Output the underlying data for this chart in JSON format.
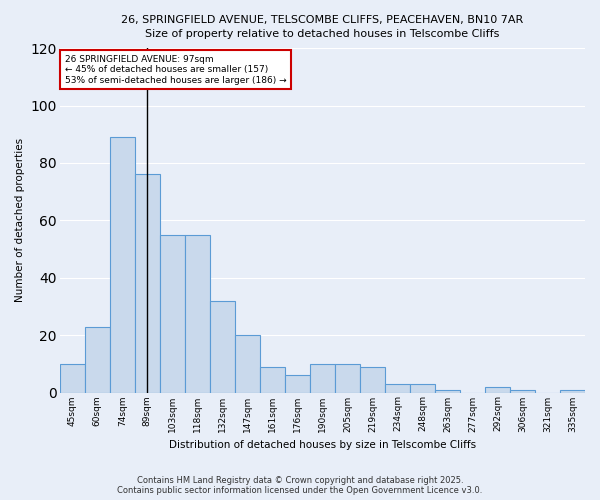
{
  "title_line1": "26, SPRINGFIELD AVENUE, TELSCOMBE CLIFFS, PEACEHAVEN, BN10 7AR",
  "title_line2": "Size of property relative to detached houses in Telscombe Cliffs",
  "categories": [
    "45sqm",
    "60sqm",
    "74sqm",
    "89sqm",
    "103sqm",
    "118sqm",
    "132sqm",
    "147sqm",
    "161sqm",
    "176sqm",
    "190sqm",
    "205sqm",
    "219sqm",
    "234sqm",
    "248sqm",
    "263sqm",
    "277sqm",
    "292sqm",
    "306sqm",
    "321sqm",
    "335sqm"
  ],
  "values": [
    10,
    23,
    89,
    76,
    55,
    55,
    32,
    20,
    9,
    6,
    10,
    10,
    9,
    3,
    3,
    1,
    0,
    2,
    1,
    0,
    1
  ],
  "bar_color": "#c9d9ec",
  "bar_edge_color": "#5b9bd5",
  "ylabel": "Number of detached properties",
  "xlabel": "Distribution of detached houses by size in Telscombe Cliffs",
  "ylim": [
    0,
    120
  ],
  "yticks": [
    0,
    20,
    40,
    60,
    80,
    100,
    120
  ],
  "property_line_x": 3,
  "annotation_line1": "26 SPRINGFIELD AVENUE: 97sqm",
  "annotation_line2": "← 45% of detached houses are smaller (157)",
  "annotation_line3": "53% of semi-detached houses are larger (186) →",
  "annotation_box_color": "#ffffff",
  "annotation_box_edge": "#cc0000",
  "vline_color": "#000000",
  "background_color": "#e8eef8",
  "grid_color": "#ffffff",
  "footer_line1": "Contains HM Land Registry data © Crown copyright and database right 2025.",
  "footer_line2": "Contains public sector information licensed under the Open Government Licence v3.0."
}
